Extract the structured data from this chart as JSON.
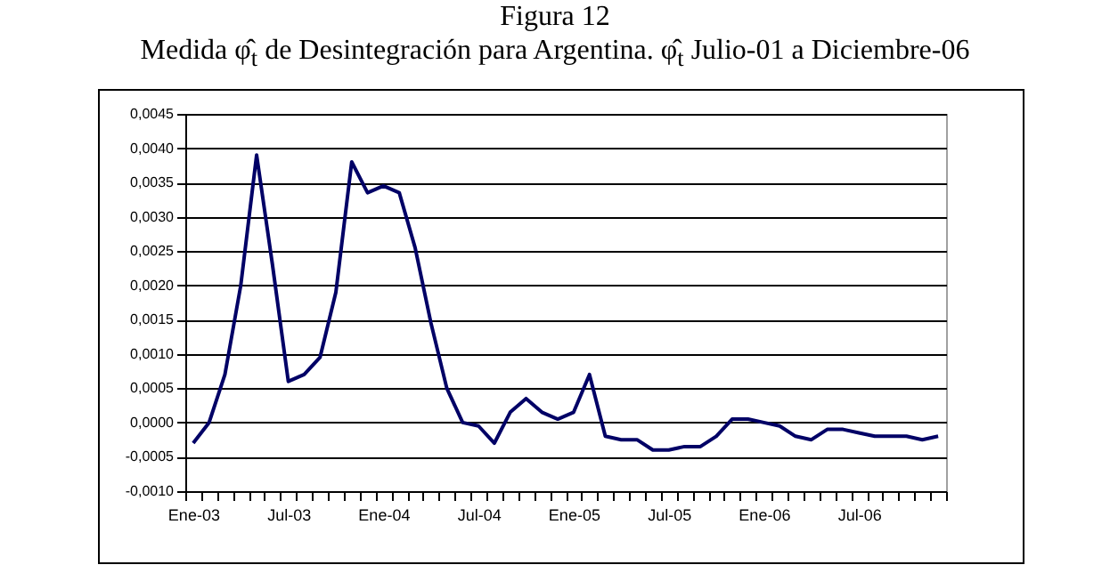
{
  "chart_data": {
    "type": "line",
    "title": "Figura 12",
    "subtitle": "Medida φ̂$_{t}$ de Desintegración para Argentina. φ̂$_{t}$ Julio-01 a Diciembre-06",
    "categories": [
      "Ene-03",
      null,
      null,
      null,
      null,
      null,
      "Jul-03",
      null,
      null,
      null,
      null,
      null,
      "Ene-04",
      null,
      null,
      null,
      null,
      null,
      "Jul-04",
      null,
      null,
      null,
      null,
      null,
      "Ene-05",
      null,
      null,
      null,
      null,
      null,
      "Jul-05",
      null,
      null,
      null,
      null,
      null,
      "Ene-06",
      null,
      null,
      null,
      null,
      null,
      "Jul-06",
      null,
      null,
      null,
      null,
      null
    ],
    "series": [
      {
        "color": "#000066",
        "values": [
          -0.0003,
          0,
          0.0007,
          0.002,
          0.0039,
          0.0023,
          0.0006,
          0.0007,
          0.00095,
          0.0019,
          0.0038,
          0.00335,
          0.00345,
          0.00335,
          0.00255,
          0.00145,
          0.0005,
          0,
          -5e-05,
          -0.0003,
          0.00015,
          0.00035,
          0.00015,
          5e-05,
          0.00015,
          0.0007,
          -0.0002,
          -0.00025,
          -0.00025,
          -0.0004,
          -0.0004,
          -0.00035,
          -0.00035,
          -0.0002,
          5e-05,
          5e-05,
          0,
          -5e-05,
          -0.0002,
          -0.00025,
          -0.0001,
          -0.0001,
          -0.00015,
          -0.0002,
          -0.0002,
          -0.0002,
          -0.00025,
          -0.0002
        ]
      }
    ],
    "ylim": [
      -0.001,
      0.0045
    ],
    "yticks": [
      {
        "value": -0.001,
        "label": "-0,0010"
      },
      {
        "value": -0.0005,
        "label": "-0,0005"
      },
      {
        "value": 0,
        "label": "0,0000"
      },
      {
        "value": 0.0005,
        "label": "0,0005"
      },
      {
        "value": 0.001,
        "label": "0,0010"
      },
      {
        "value": 0.0015,
        "label": "0,0015"
      },
      {
        "value": 0.002,
        "label": "0,0020"
      },
      {
        "value": 0.0025,
        "label": "0,0025"
      },
      {
        "value": 0.003,
        "label": "0,0030"
      },
      {
        "value": 0.0035,
        "label": "0,0035"
      },
      {
        "value": 0.004,
        "label": "0,0040"
      },
      {
        "value": 0.0045,
        "label": "0,0045"
      }
    ],
    "grid": "y"
  }
}
